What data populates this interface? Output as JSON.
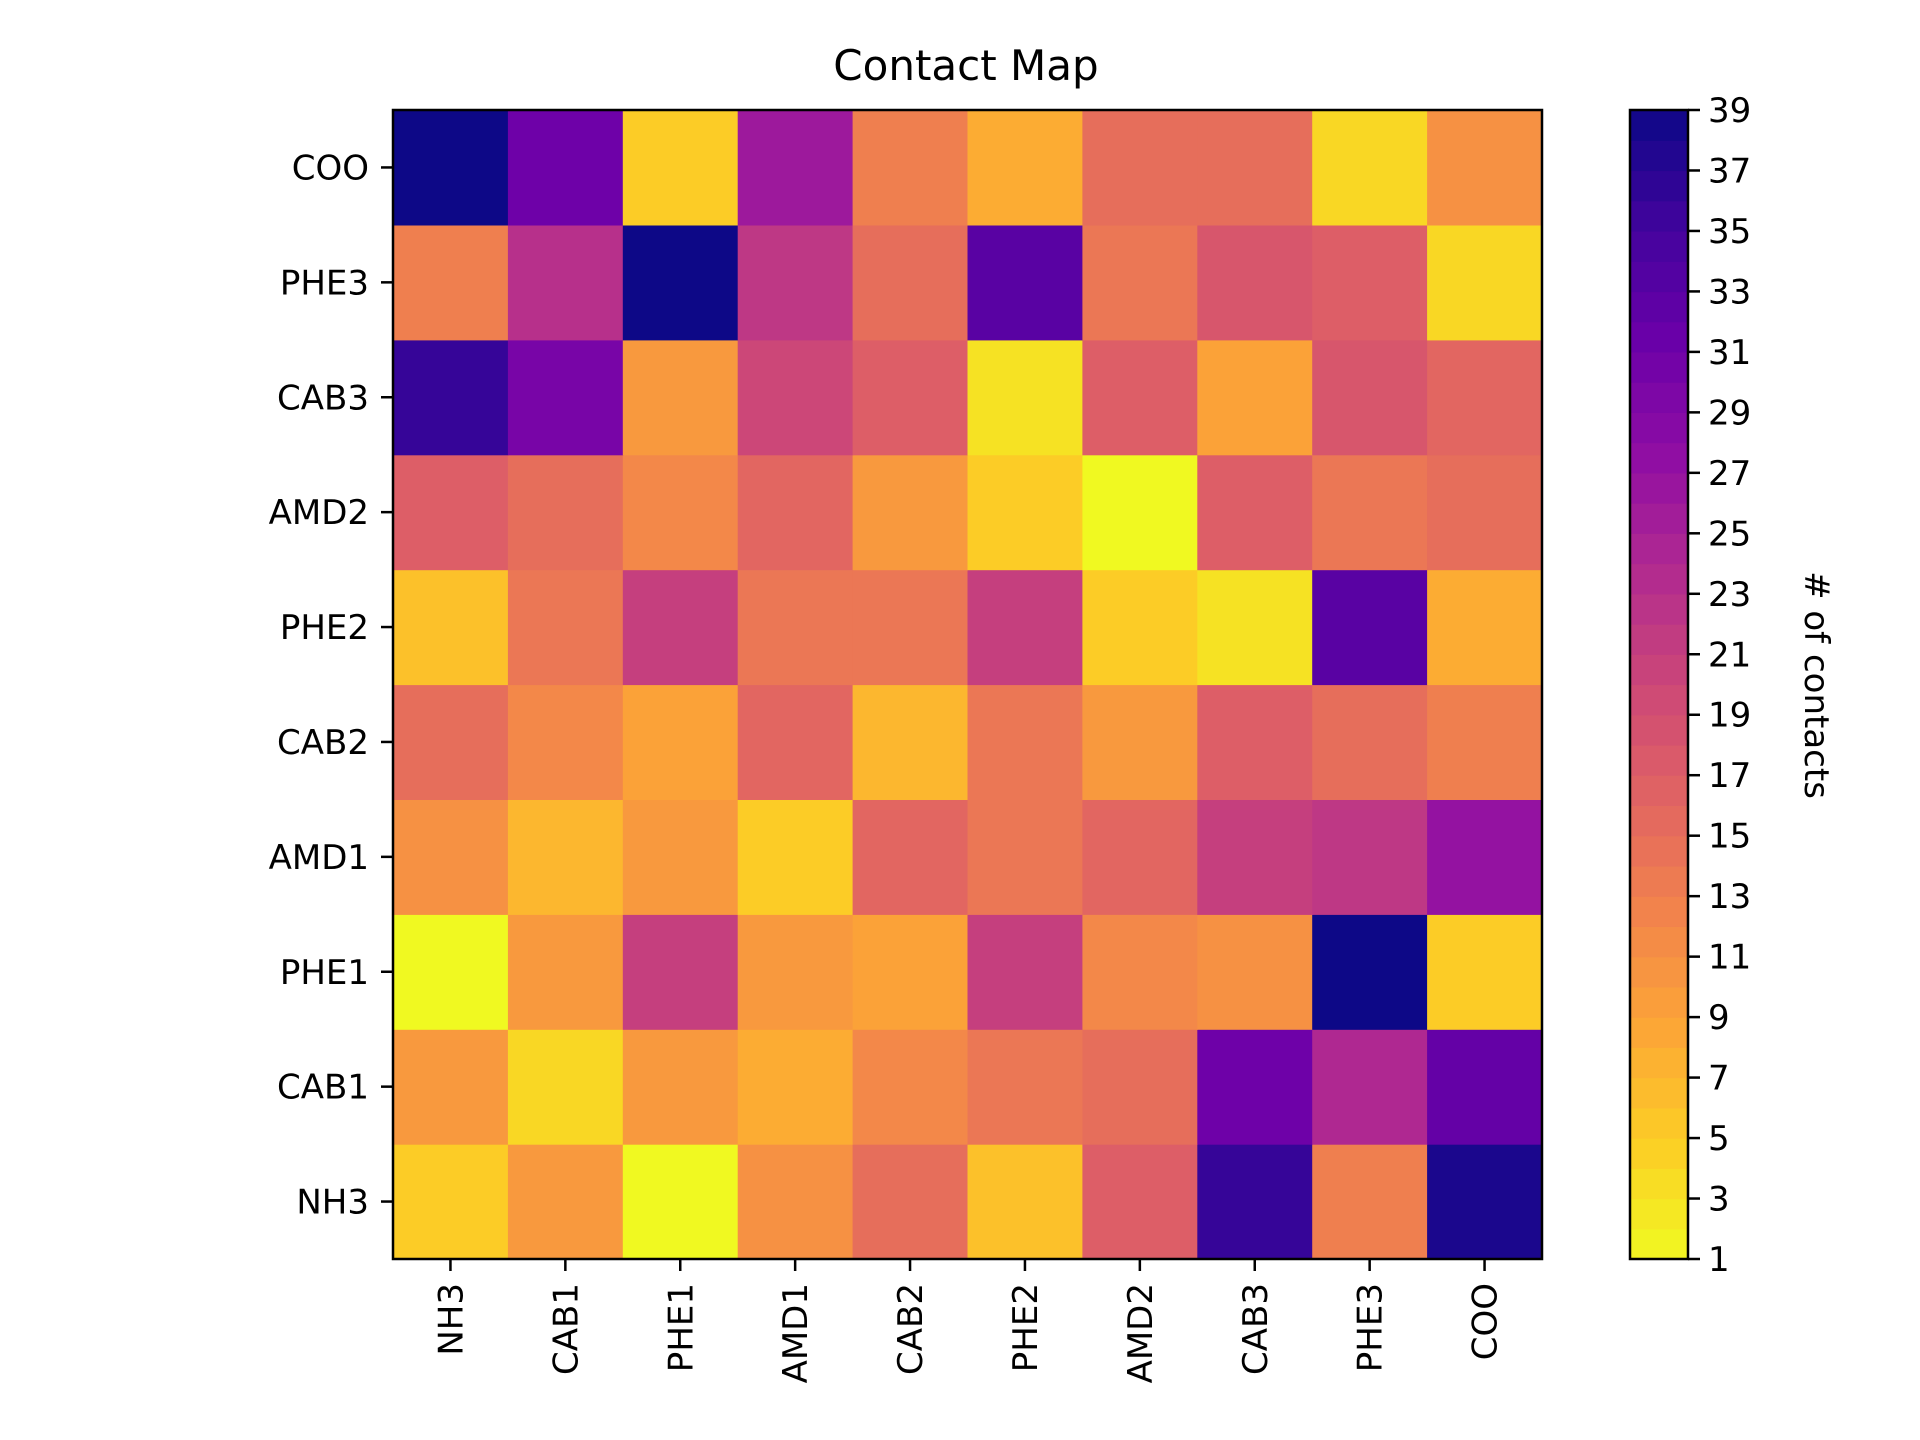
{
  "chart_data": {
    "type": "heatmap",
    "title": "Contact Map",
    "x_categories": [
      "NH3",
      "CAB1",
      "PHE1",
      "AMD1",
      "CAB2",
      "PHE2",
      "AMD2",
      "CAB3",
      "PHE3",
      "COO"
    ],
    "y_categories": [
      "NH3",
      "CAB1",
      "PHE1",
      "AMD1",
      "CAB2",
      "PHE2",
      "AMD2",
      "CAB3",
      "PHE3",
      "COO"
    ],
    "values": [
      [
        5,
        10,
        1,
        11,
        15,
        6,
        17,
        36,
        13,
        38
      ],
      [
        10,
        4,
        10,
        8,
        12,
        14,
        15,
        31,
        24,
        32
      ],
      [
        1,
        10,
        21,
        10,
        9,
        21,
        12,
        11,
        39,
        5
      ],
      [
        11,
        7,
        10,
        5,
        16,
        14,
        16,
        21,
        22,
        27
      ],
      [
        15,
        12,
        9,
        16,
        7,
        14,
        10,
        17,
        15,
        13
      ],
      [
        6,
        14,
        21,
        14,
        14,
        21,
        5,
        3,
        33,
        8
      ],
      [
        17,
        15,
        12,
        16,
        10,
        5,
        1,
        17,
        14,
        15
      ],
      [
        36,
        30,
        10,
        20,
        17,
        3,
        17,
        9,
        18,
        16
      ],
      [
        13,
        23,
        39,
        22,
        15,
        33,
        14,
        18,
        17,
        4
      ],
      [
        39,
        31,
        5,
        26,
        13,
        8,
        15,
        15,
        4,
        11
      ]
    ],
    "colorbar": {
      "label": "# of contacts",
      "min": 1,
      "max": 39,
      "ticks": [
        1,
        3,
        5,
        7,
        9,
        11,
        13,
        15,
        17,
        19,
        21,
        23,
        25,
        27,
        29,
        31,
        33,
        35,
        37,
        39
      ],
      "colormap": "plasma (reversed, discrete)",
      "color_low": "#f0f921",
      "color_high": "#0d0887"
    }
  }
}
